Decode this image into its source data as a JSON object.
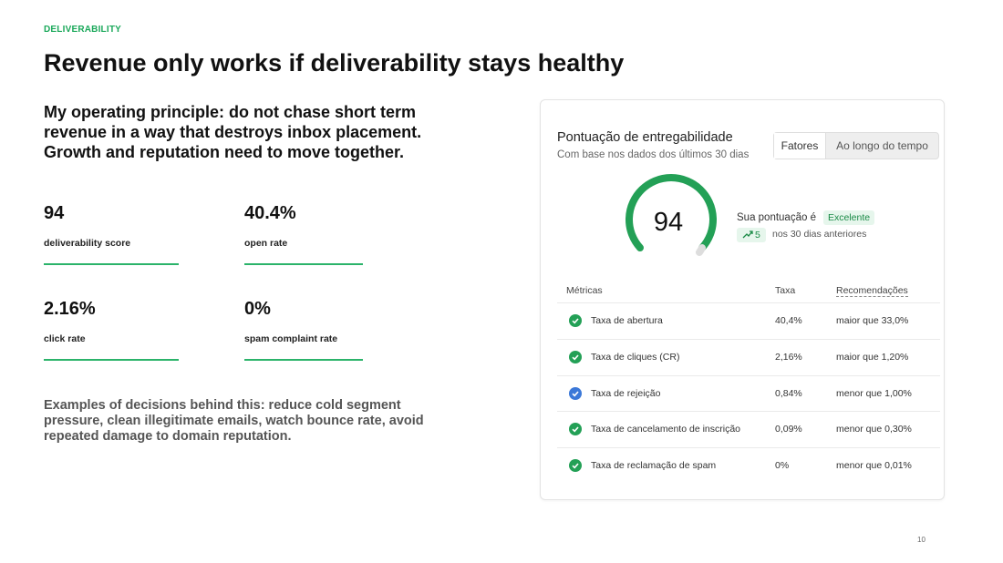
{
  "eyebrow": "DELIVERABILITY",
  "title": "Revenue only works if deliverability stays healthy",
  "principle": [
    "My operating principle: do not chase short term",
    "revenue in a way that destroys inbox placement.",
    "Growth and reputation need to move together."
  ],
  "metrics": [
    {
      "value": "94",
      "label": "deliverability score"
    },
    {
      "value": "40.4%",
      "label": "open rate"
    },
    {
      "value": "2.16%",
      "label": "click rate"
    },
    {
      "value": "0%",
      "label": "spam complaint rate"
    }
  ],
  "examples": [
    "Examples of decisions behind this: reduce cold segment",
    "pressure, clean illegitimate emails, watch bounce rate, avoid",
    "repeated damage to domain reputation."
  ],
  "card": {
    "title": "Pontuação de entregabilidade",
    "subtitle": "Com base nos dados dos últimos 30 dias",
    "tabs": [
      "Fatores",
      "Ao longo do tempo"
    ],
    "score": "94",
    "score_text": "Sua pontuação é",
    "rating": "Excelente",
    "change": "5",
    "change_text": "nos 30 dias anteriores",
    "columns": [
      "Métricas",
      "Taxa",
      "Recomendações"
    ],
    "rows": [
      [
        "Taxa de abertura",
        "40,4%",
        "maior que 33,0%"
      ],
      [
        "Taxa de cliques (CR)",
        "2,16%",
        "maior que 1,20%"
      ],
      [
        "Taxa de rejeição",
        "0,84%",
        "menor que 1,00%"
      ],
      [
        "Taxa de cancelamento de inscrição",
        "0,09%",
        "menor que 0,30%"
      ],
      [
        "Taxa de reclamação de spam",
        "0%",
        "menor que 0,01%"
      ]
    ]
  },
  "page_number": "10"
}
